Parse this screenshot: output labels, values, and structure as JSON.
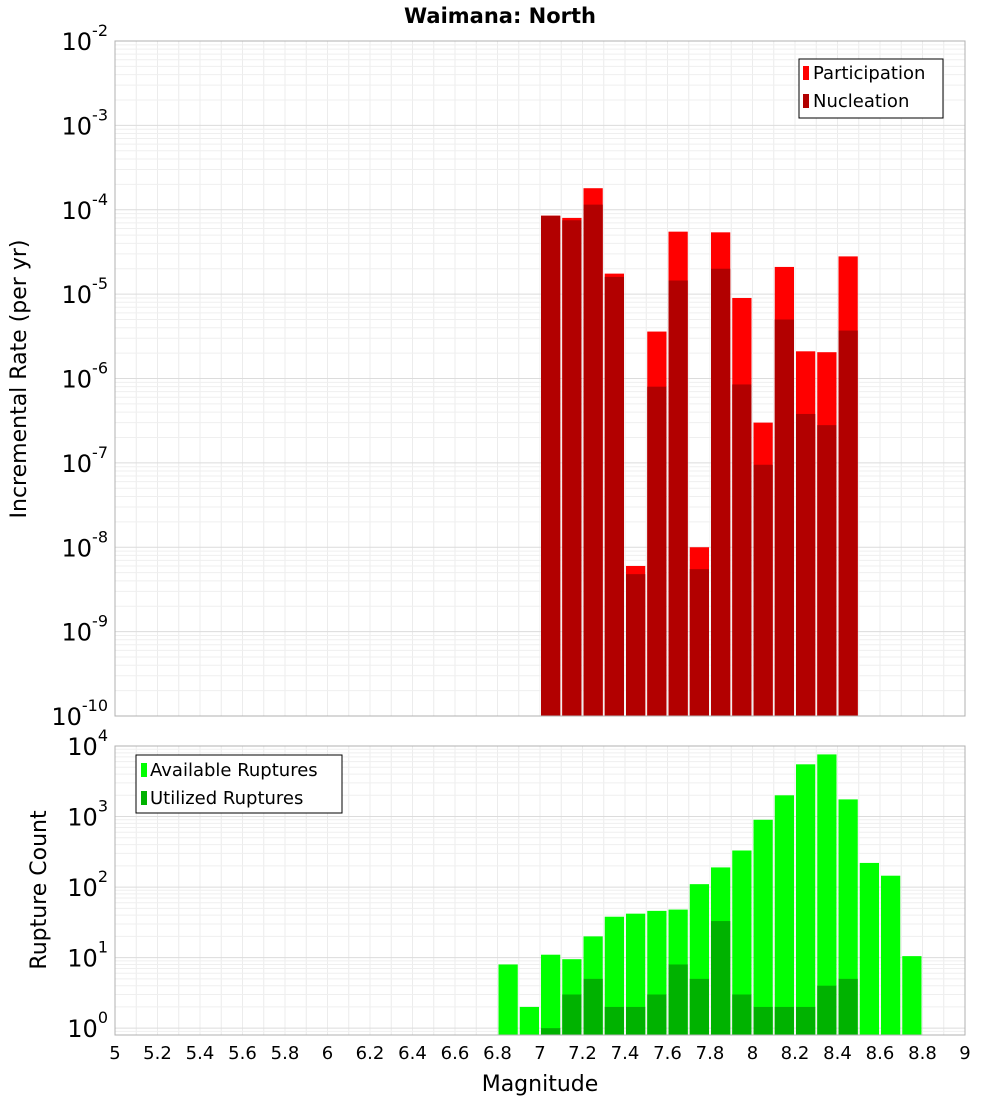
{
  "chart_data": [
    {
      "type": "bar",
      "title": "Waimana: North",
      "ylabel": "Incremental Rate (per yr)",
      "xlabel": "",
      "yscale": "log",
      "ylim": [
        1e-10,
        0.01
      ],
      "xlim": [
        5,
        9
      ],
      "grid": true,
      "legend_position": "top-right",
      "bar_width": 0.1,
      "ytick_labels": [
        {
          "base": "10",
          "exp": "-10"
        },
        {
          "base": "10",
          "exp": "-9"
        },
        {
          "base": "10",
          "exp": "-8"
        },
        {
          "base": "10",
          "exp": "-7"
        },
        {
          "base": "10",
          "exp": "-6"
        },
        {
          "base": "10",
          "exp": "-5"
        },
        {
          "base": "10",
          "exp": "-4"
        },
        {
          "base": "10",
          "exp": "-3"
        },
        {
          "base": "10",
          "exp": "-2"
        }
      ],
      "x": [
        7.05,
        7.15,
        7.25,
        7.35,
        7.45,
        7.55,
        7.65,
        7.75,
        7.85,
        7.95,
        8.05,
        8.15,
        8.25,
        8.35,
        8.45
      ],
      "series": [
        {
          "name": "Participation",
          "color": "#ff0000",
          "values": [
            8.5e-05,
            8e-05,
            0.00018,
            1.75e-05,
            6e-09,
            3.6e-06,
            5.5e-05,
            1e-08,
            5.4e-05,
            9e-06,
            3e-07,
            2.1e-05,
            2.1e-06,
            2.05e-06,
            2.8e-05
          ]
        },
        {
          "name": "Nucleation",
          "color": "#b20000",
          "values": [
            8.5e-05,
            7.5e-05,
            0.000115,
            1.6e-05,
            4.8e-09,
            8e-07,
            1.45e-05,
            5.5e-09,
            2e-05,
            8.5e-07,
            9.5e-08,
            5e-06,
            3.8e-07,
            2.8e-07,
            3.7e-06
          ]
        }
      ]
    },
    {
      "type": "bar",
      "title": "",
      "ylabel": "Rupture Count",
      "xlabel": "Magnitude",
      "yscale": "log",
      "ylim": [
        0.8,
        10000
      ],
      "xlim": [
        5,
        9
      ],
      "grid": true,
      "legend_position": "top-left",
      "bar_width": 0.1,
      "ytick_labels": [
        {
          "base": "10",
          "exp": "0"
        },
        {
          "base": "10",
          "exp": "1"
        },
        {
          "base": "10",
          "exp": "2"
        },
        {
          "base": "10",
          "exp": "3"
        },
        {
          "base": "10",
          "exp": "4"
        }
      ],
      "xtick_labels": [
        "5",
        "5.2",
        "5.4",
        "5.6",
        "5.8",
        "6",
        "6.2",
        "6.4",
        "6.6",
        "6.8",
        "7",
        "7.2",
        "7.4",
        "7.6",
        "7.8",
        "8",
        "8.2",
        "8.4",
        "8.6",
        "8.8",
        "9"
      ],
      "x": [
        6.85,
        6.95,
        7.05,
        7.15,
        7.25,
        7.35,
        7.45,
        7.55,
        7.65,
        7.75,
        7.85,
        7.95,
        8.05,
        8.15,
        8.25,
        8.35,
        8.45,
        8.55,
        8.65,
        8.75
      ],
      "series": [
        {
          "name": "Available Ruptures",
          "color": "#00ff00",
          "values": [
            8,
            2,
            11,
            9.5,
            20,
            38,
            42,
            46,
            48,
            110,
            190,
            330,
            900,
            2000,
            5500,
            7600,
            1750,
            220,
            145,
            10.5
          ]
        },
        {
          "name": "Utilized Ruptures",
          "color": "#00b200",
          "values": [
            null,
            null,
            1,
            3,
            5,
            2,
            2,
            3,
            8,
            5,
            33,
            3,
            2,
            2,
            2,
            4,
            5,
            null,
            null,
            null
          ]
        }
      ]
    }
  ]
}
